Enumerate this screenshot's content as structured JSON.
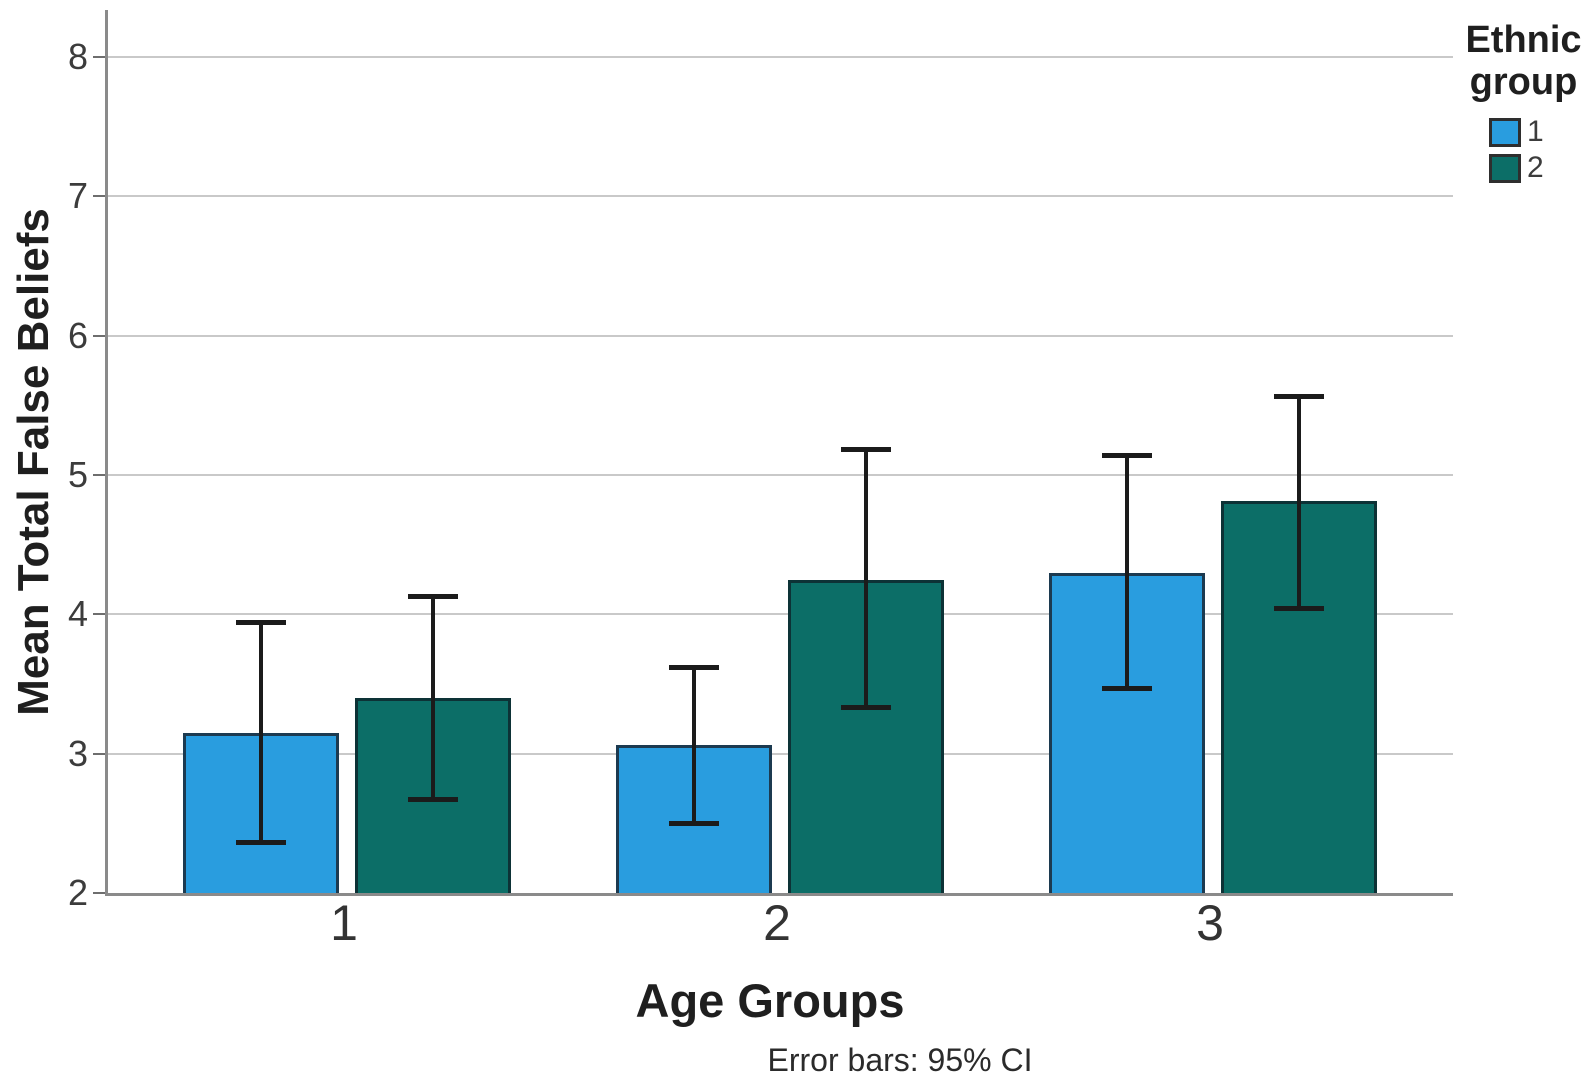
{
  "chart_data": {
    "type": "bar",
    "title": "",
    "categories": [
      "1",
      "2",
      "3"
    ],
    "series": [
      {
        "name": "1",
        "color": "#299DDF",
        "border_color": "#1C3A50",
        "values": [
          3.15,
          3.06,
          4.3
        ],
        "ci_low": [
          2.36,
          2.5,
          3.47
        ],
        "ci_high": [
          3.94,
          3.62,
          5.14
        ]
      },
      {
        "name": "2",
        "color": "#0C6E67",
        "border_color": "#0D3236",
        "values": [
          3.4,
          4.25,
          4.81
        ],
        "ci_low": [
          2.67,
          3.33,
          4.04
        ],
        "ci_high": [
          4.13,
          5.18,
          5.56
        ]
      }
    ],
    "xlabel": "Age Groups",
    "ylabel": "Mean Total False Beliefs",
    "ylim": [
      2,
      8
    ],
    "yticks": [
      8,
      7,
      6,
      5,
      4,
      3,
      2
    ],
    "grid": "horizontal",
    "legend_title": "Ethnic group",
    "legend_position": "top-right-outside",
    "error_bars": "95% CI",
    "footnote": "Error bars: 95% CI"
  },
  "colors": {
    "gridline": "#c9c9c9",
    "axis_line": "#8a8a8a",
    "error_bar": "#1b1b1b",
    "tick_text": "#3c3c3c",
    "title_text": "#1f1f1f"
  },
  "legend": {
    "title": "Ethnic group",
    "items": [
      {
        "label": "1",
        "color": "#299DDF"
      },
      {
        "label": "2",
        "color": "#0C6E67"
      }
    ]
  }
}
